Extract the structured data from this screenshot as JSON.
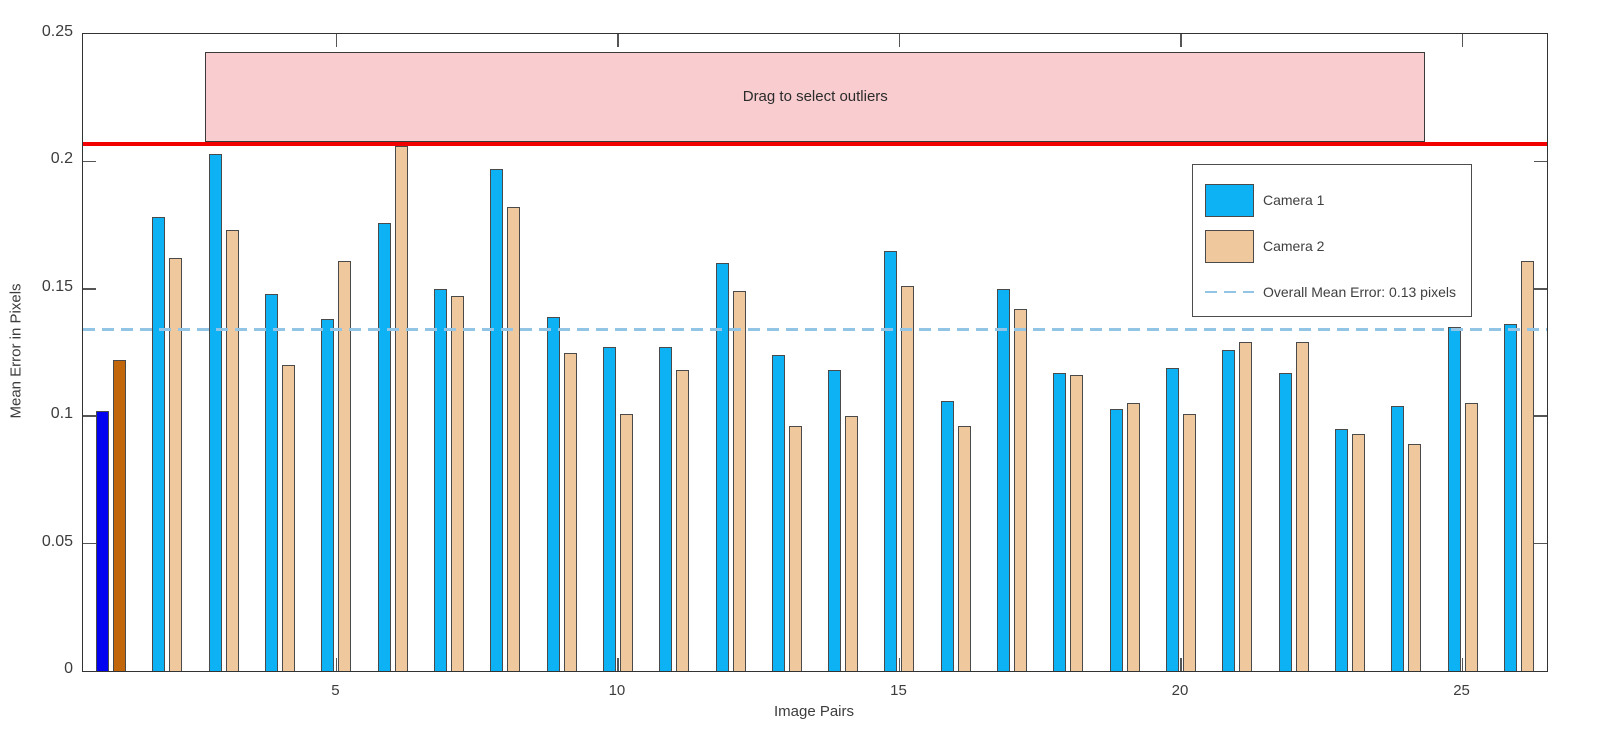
{
  "figure": {
    "background": "#ffffff"
  },
  "chart_data": {
    "type": "bar",
    "title": "",
    "xlabel": "Image Pairs",
    "ylabel": "Mean Error in Pixels",
    "ylim": [
      0,
      0.25
    ],
    "yticks": [
      0,
      0.05,
      0.1,
      0.15,
      0.2,
      0.25
    ],
    "ytick_labels": [
      "0",
      "0.05",
      "0.1",
      "0.15",
      "0.2",
      "0.25"
    ],
    "xticks": [
      5,
      10,
      15,
      20,
      25
    ],
    "xtick_labels": [
      "5",
      "10",
      "15",
      "20",
      "25"
    ],
    "grid": false,
    "legend_position": "upper right",
    "categories": [
      1,
      2,
      3,
      4,
      5,
      6,
      7,
      8,
      9,
      10,
      11,
      12,
      13,
      14,
      15,
      16,
      17,
      18,
      19,
      20,
      21,
      22,
      23,
      24,
      25,
      26
    ],
    "series": [
      {
        "name": "Camera 1",
        "color": "#0db2f4",
        "values": [
          0.102,
          0.178,
          0.203,
          0.148,
          0.138,
          0.176,
          0.15,
          0.197,
          0.139,
          0.127,
          0.127,
          0.16,
          0.124,
          0.118,
          0.165,
          0.106,
          0.15,
          0.117,
          0.103,
          0.119,
          0.126,
          0.117,
          0.095,
          0.104,
          0.135,
          0.136
        ]
      },
      {
        "name": "Camera 2",
        "color": "#efc89e",
        "values": [
          0.122,
          0.162,
          0.173,
          0.12,
          0.161,
          0.206,
          0.147,
          0.182,
          0.125,
          0.101,
          0.118,
          0.149,
          0.096,
          0.1,
          0.151,
          0.096,
          0.142,
          0.116,
          0.105,
          0.101,
          0.129,
          0.129,
          0.093,
          0.089,
          0.105,
          0.161
        ]
      }
    ],
    "selected_pair": 1,
    "selected_colors": [
      "#0202f0",
      "#c2660c"
    ],
    "mean_line": {
      "value": 0.134,
      "label": "Overall Mean Error: 0.13 pixels",
      "color": "#92c4e6"
    },
    "threshold_line": {
      "value": 0.207,
      "color": "#f20000"
    },
    "selection_region": {
      "label": "Drag to select outliers",
      "x_from": 2.67,
      "x_to": 24.34,
      "y_from": 0.207,
      "y_to": 0.243,
      "fill": "#f9cdd0",
      "border": "#3a3a3a"
    },
    "bar_edge_color": "#4a4a4a",
    "axis_color": "#333333",
    "text_color": "#3c3c3c"
  }
}
